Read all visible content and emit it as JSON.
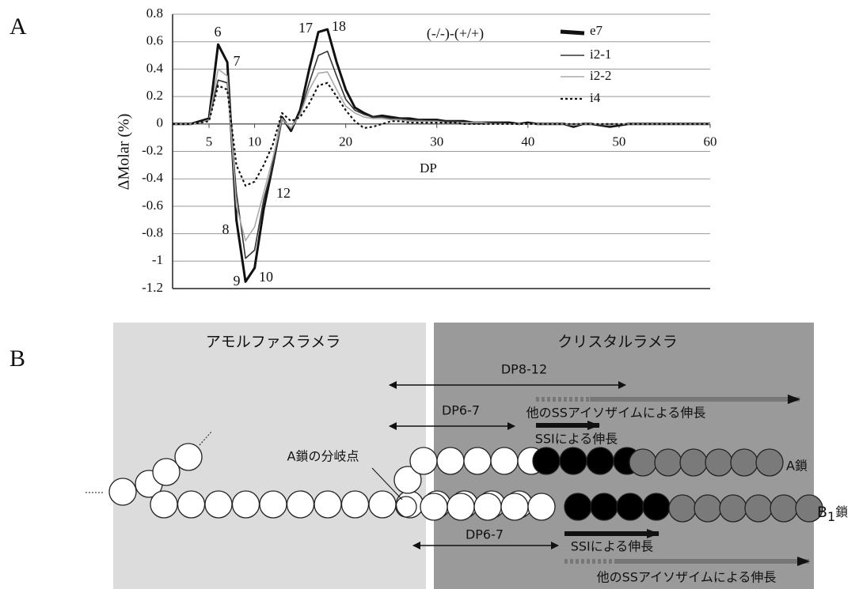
{
  "panel_labels": [
    "A",
    "B"
  ],
  "chart_data": {
    "type": "line",
    "xlabel": "DP",
    "ylabel": "ΔMolar (%)",
    "x": [
      1,
      2,
      3,
      4,
      5,
      6,
      7,
      8,
      9,
      10,
      11,
      12,
      13,
      14,
      15,
      16,
      17,
      18,
      19,
      20,
      21,
      22,
      23,
      24,
      25,
      26,
      27,
      28,
      29,
      30,
      31,
      32,
      33,
      34,
      35,
      36,
      37,
      38,
      39,
      40,
      41,
      42,
      43,
      44,
      45,
      46,
      47,
      48,
      49,
      50,
      51,
      52,
      53,
      54,
      55,
      56,
      57,
      58,
      59,
      60
    ],
    "xlim": [
      1,
      60
    ],
    "xticks": [
      5,
      10,
      20,
      30,
      40,
      50,
      60
    ],
    "ylim": [
      -1.2,
      0.8
    ],
    "yticks": [
      -1.2,
      -1,
      -0.8,
      -0.6,
      -0.4,
      -0.2,
      0,
      0.2,
      0.4,
      0.6,
      0.8
    ],
    "grid": true,
    "annotations": [
      "(-/-)-(+/+)",
      "6",
      "7",
      "8",
      "9",
      "10",
      "12",
      "17",
      "18"
    ],
    "series": [
      {
        "name": "e7",
        "color": "#111111",
        "linestyle": "solid",
        "values": [
          0,
          0,
          0,
          0.02,
          0.04,
          0.58,
          0.45,
          -0.7,
          -1.15,
          -1.05,
          -0.62,
          -0.3,
          0.05,
          -0.05,
          0.1,
          0.4,
          0.67,
          0.69,
          0.45,
          0.25,
          0.12,
          0.08,
          0.05,
          0.06,
          0.05,
          0.04,
          0.04,
          0.03,
          0.03,
          0.03,
          0.02,
          0.02,
          0.02,
          0.01,
          0.01,
          0.01,
          0.01,
          0.01,
          0,
          0.01,
          0,
          0,
          0,
          0,
          -0.02,
          0,
          0,
          -0.01,
          -0.02,
          -0.01,
          0,
          0,
          0,
          0,
          0,
          0,
          0,
          0,
          0,
          0
        ]
      },
      {
        "name": "i2-1",
        "color": "#333333",
        "linestyle": "solid",
        "values": [
          0,
          0,
          0,
          0.01,
          0.03,
          0.32,
          0.3,
          -0.5,
          -0.98,
          -0.92,
          -0.55,
          -0.3,
          0.04,
          -0.04,
          0.08,
          0.3,
          0.5,
          0.53,
          0.35,
          0.18,
          0.1,
          0.07,
          0.05,
          0.05,
          0.04,
          0.04,
          0.03,
          0.03,
          0.02,
          0.02,
          0.02,
          0.02,
          0.01,
          0.01,
          0.01,
          0.01,
          0.01,
          0,
          0,
          0,
          0,
          0,
          0,
          0,
          -0.01,
          0,
          0,
          -0.01,
          -0.01,
          0,
          0,
          0,
          0,
          0,
          0,
          0,
          0,
          0,
          0,
          0
        ]
      },
      {
        "name": "i2-2",
        "color": "#aaaaaa",
        "linestyle": "solid",
        "values": [
          0,
          0,
          0,
          0.01,
          0.03,
          0.4,
          0.35,
          -0.6,
          -0.85,
          -0.75,
          -0.5,
          -0.25,
          0.04,
          -0.03,
          0.07,
          0.25,
          0.37,
          0.38,
          0.25,
          0.13,
          0.08,
          0.05,
          0.04,
          0.04,
          0.03,
          0.03,
          0.02,
          0.02,
          0.02,
          0.02,
          0.01,
          0.01,
          0.01,
          0.01,
          0.01,
          0,
          0,
          0,
          0,
          0,
          0,
          0,
          0,
          0,
          -0.01,
          0,
          0,
          0,
          -0.01,
          0,
          0,
          0,
          0,
          0,
          0,
          0,
          0,
          0,
          0,
          0
        ]
      },
      {
        "name": "i4",
        "color": "#111111",
        "linestyle": "dotted",
        "values": [
          0,
          0,
          0,
          0.01,
          0.02,
          0.28,
          0.25,
          -0.3,
          -0.45,
          -0.42,
          -0.3,
          -0.15,
          0.08,
          0.02,
          0.05,
          0.15,
          0.28,
          0.3,
          0.2,
          0.1,
          0.02,
          -0.03,
          -0.02,
          0,
          0.02,
          0.02,
          0.01,
          0.01,
          0.01,
          0.01,
          0.01,
          0.01,
          0,
          0,
          0,
          0,
          0,
          0,
          0,
          0,
          0,
          0,
          0,
          0,
          0,
          0,
          0,
          0,
          0,
          0,
          0,
          0,
          0,
          0,
          0,
          0,
          0,
          0,
          0,
          0
        ]
      }
    ]
  },
  "diagram": {
    "amorphous_label": "アモルファスラメラ",
    "crystal_label": "クリスタルラメラ",
    "upper": {
      "dp_long": "DP8-12",
      "other_ss": "他のSSアイソザイムによる伸長",
      "dp_short": "DP6-7",
      "ssi": "SSIによる伸長"
    },
    "lower": {
      "dp_short": "DP6-7",
      "ssi": "SSIによる伸長",
      "other_ss": "他のSSアイソザイムによる伸長"
    },
    "branch_point": "A鎖の分岐点",
    "a_chain": "A鎖",
    "b_chain": {
      "base": "B",
      "subscript": "1",
      "suffix": "鎖"
    }
  }
}
